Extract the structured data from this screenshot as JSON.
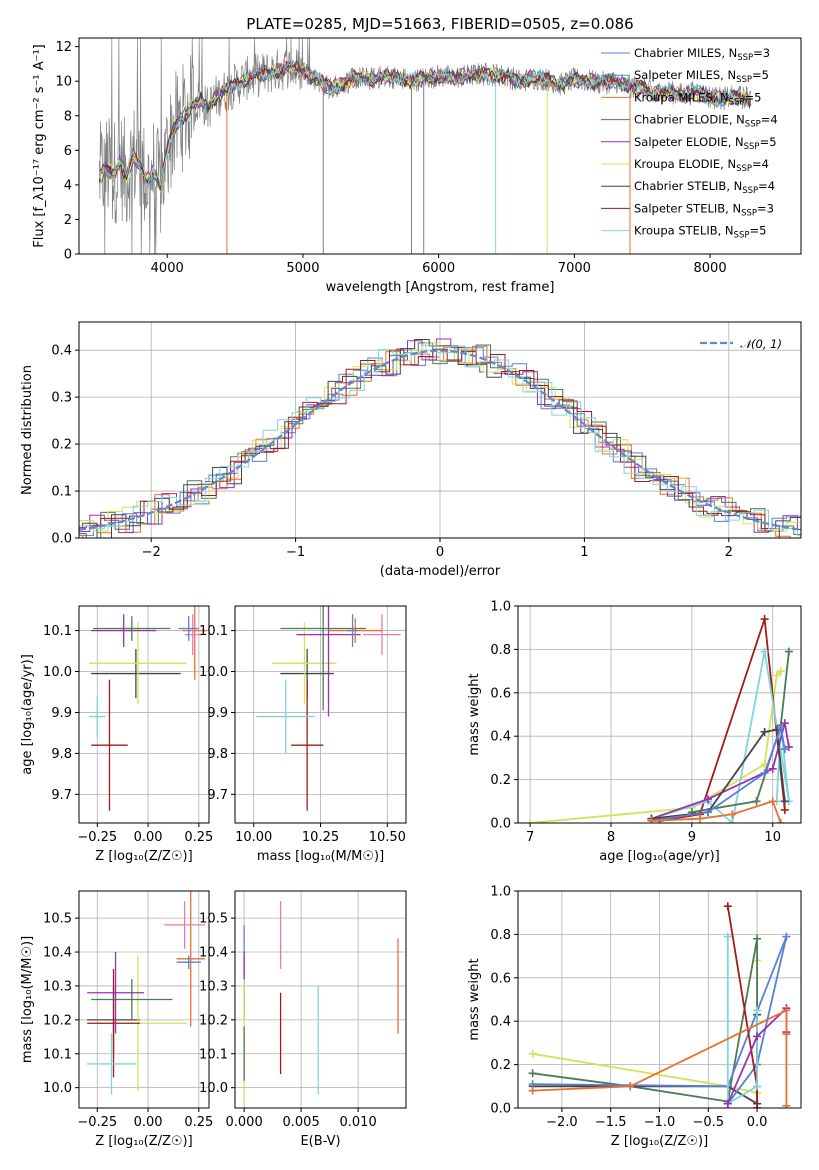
{
  "figure": {
    "title": "PLATE=0285, MJD=51663, FIBERID=0505, z=0.086"
  },
  "colors": {
    "Chabrier MILES": "#5b7fd6",
    "Salpeter MILES": "#3f9be0",
    "Kroupa MILES": "#e8712f",
    "Chabrier ELODIE": "#4d7b53",
    "Salpeter ELODIE": "#9b2fb5",
    "Kroupa ELODIE": "#d3e25a",
    "Chabrier STELIB": "#454545",
    "Salpeter STELIB": "#a21c1c",
    "Kroupa STELIB": "#7ed6dc",
    "pink": "#e57ab7",
    "data": "#808080",
    "normal": "#5a8ad2"
  },
  "chart_data": [
    {
      "id": "spectrum",
      "type": "line",
      "title": "PLATE=0285, MJD=51663, FIBERID=0505, z=0.086",
      "xlabel": "wavelength [Angstrom, rest frame]",
      "ylabel": "Flux [f_λ10⁻¹⁷ erg cm⁻² s⁻¹ A⁻¹]",
      "xlim": [
        3350,
        8670
      ],
      "ylim": [
        0,
        12.5
      ],
      "xticks": [
        4000,
        5000,
        6000,
        7000,
        8000
      ],
      "yticks": [
        0,
        2,
        4,
        6,
        8,
        10,
        12
      ],
      "grid": false,
      "legend_position": "top-right",
      "legend": [
        "Chabrier MILES, N_SSP=3",
        "Salpeter MILES, N_SSP=5",
        "Kroupa MILES, N_SSP=5",
        "Chabrier ELODIE, N_SSP=4",
        "Salpeter ELODIE, N_SSP=5",
        "Kroupa ELODIE, N_SSP=4",
        "Chabrier STELIB, N_SSP=4",
        "Salpeter STELIB, N_SSP=3",
        "Kroupa STELIB, N_SSP=5"
      ],
      "legend_main": [
        "Chabrier MILES, N",
        "Salpeter MILES, N",
        "Kroupa MILES, N",
        "Chabrier ELODIE, N",
        "Salpeter ELODIE, N",
        "Kroupa ELODIE, N",
        "Chabrier STELIB, N",
        "Salpeter STELIB, N",
        "Kroupa STELIB, N"
      ],
      "legend_sub": "SSP",
      "legend_eq": [
        "=3",
        "=5",
        "=5",
        "=4",
        "=5",
        "=4",
        "=4",
        "=3",
        "=5"
      ],
      "model_continuum": {
        "x": [
          3500,
          3550,
          3600,
          3650,
          3700,
          3750,
          3800,
          3850,
          3900,
          3950,
          4000,
          4050,
          4100,
          4150,
          4200,
          4250,
          4300,
          4350,
          4400,
          4450,
          4500,
          4600,
          4700,
          4800,
          4900,
          5000,
          5100,
          5200,
          5300,
          5400,
          5500,
          5600,
          5700,
          5800,
          5900,
          6000,
          6100,
          6200,
          6300,
          6400,
          6500,
          6600,
          6700,
          6800,
          6900,
          7000,
          7100,
          7200,
          7300,
          7400,
          7500,
          7600,
          7700,
          7800,
          7900,
          8000,
          8100,
          8200,
          8300
        ],
        "y": [
          4.4,
          5.0,
          4.6,
          5.3,
          4.5,
          5.7,
          5.1,
          4.2,
          4.8,
          3.8,
          6.0,
          7.3,
          7.8,
          8.2,
          8.7,
          8.9,
          8.4,
          9.0,
          9.3,
          9.5,
          9.8,
          10.2,
          10.4,
          10.6,
          10.8,
          10.6,
          10.1,
          9.6,
          9.9,
          10.2,
          10.1,
          10.3,
          10.2,
          10.0,
          10.2,
          10.3,
          10.2,
          10.3,
          10.4,
          10.4,
          10.3,
          10.0,
          10.2,
          10.1,
          9.8,
          10.1,
          10.0,
          9.9,
          10.0,
          9.7,
          9.6,
          9.3,
          9.4,
          9.2,
          9.4,
          9.1,
          9.0,
          9.1,
          9.0
        ]
      }
    },
    {
      "id": "residual-histogram",
      "type": "bar",
      "xlabel": "(data-model)/error",
      "ylabel": "Normed distribution",
      "xlim": [
        -2.5,
        2.5
      ],
      "ylim": [
        0,
        0.46
      ],
      "xticks": [
        -2,
        -1,
        0,
        1,
        2
      ],
      "yticks": [
        0.0,
        0.1,
        0.2,
        0.3,
        0.4
      ],
      "grid": true,
      "legend_position": "top-right",
      "legend": [
        "𝒩(0, 1)"
      ]
    },
    {
      "id": "age-vs-Z",
      "type": "scatter",
      "xlabel": "Z [log₁₀(Z/Z☉)]",
      "ylabel": "age  [log₁₀(age/yr)]",
      "xlim": [
        -0.34,
        0.3
      ],
      "ylim": [
        9.63,
        10.16
      ],
      "xticks": [
        -0.25,
        0.0,
        0.25
      ],
      "xtick_labels": [
        "−0.25",
        "0.00",
        "0.25"
      ],
      "yticks": [
        9.7,
        9.8,
        9.9,
        10.0,
        10.1
      ],
      "grid": true,
      "points": [
        {
          "model": "Chabrier STELIB",
          "x": -0.06,
          "xerr": 0.22,
          "y": 9.995,
          "yerr": 0.06
        },
        {
          "model": "Kroupa ELODIE",
          "x": -0.05,
          "xerr": 0.24,
          "y": 10.02,
          "yerr": 0.1
        },
        {
          "model": "Salpeter STELIB",
          "x": -0.19,
          "xerr": 0.09,
          "y": 9.82,
          "yerr": 0.16
        },
        {
          "model": "Kroupa STELIB",
          "x": -0.25,
          "xerr": 0.04,
          "y": 9.89,
          "yerr": 0.05
        },
        {
          "model": "Chabrier ELODIE",
          "x": -0.08,
          "xerr": 0.19,
          "y": 10.105,
          "yerr": 0.03
        },
        {
          "model": "Salpeter ELODIE",
          "x": -0.12,
          "xerr": 0.16,
          "y": 10.1,
          "yerr": 0.04
        },
        {
          "model": "Kroupa MILES",
          "x": 0.23,
          "xerr": 0.06,
          "y": 10.1,
          "yerr": 0.12
        },
        {
          "model": "pink",
          "x": 0.22,
          "xerr": 0.04,
          "y": 10.09,
          "yerr": 0.05
        },
        {
          "model": "Chabrier MILES",
          "x": 0.2,
          "xerr": 0.05,
          "y": 10.105,
          "yerr": 0.03
        }
      ]
    },
    {
      "id": "age-vs-mass",
      "type": "scatter",
      "xlabel": "mass [log₁₀(M/M☉)]",
      "xlim": [
        9.93,
        10.57
      ],
      "ylim": [
        9.63,
        10.16
      ],
      "xticks": [
        10.0,
        10.25,
        10.5
      ],
      "xtick_labels": [
        "10.00",
        "10.25",
        "10.50"
      ],
      "yticks": [
        9.7,
        9.8,
        9.9,
        10.0,
        10.1
      ],
      "grid": true,
      "points": [
        {
          "model": "Chabrier STELIB",
          "x": 10.2,
          "xerr": 0.1,
          "y": 9.995,
          "yerr": 0.06
        },
        {
          "model": "Kroupa ELODIE",
          "x": 10.19,
          "xerr": 0.12,
          "y": 10.02,
          "yerr": 0.1
        },
        {
          "model": "Salpeter STELIB",
          "x": 10.2,
          "xerr": 0.06,
          "y": 9.82,
          "yerr": 0.16
        },
        {
          "model": "Kroupa STELIB",
          "x": 10.12,
          "xerr": 0.11,
          "y": 9.89,
          "yerr": 0.09
        },
        {
          "model": "Chabrier ELODIE",
          "x": 10.26,
          "xerr": 0.16,
          "y": 10.105,
          "yerr": 0.2
        },
        {
          "model": "Salpeter ELODIE",
          "x": 10.28,
          "xerr": 0.12,
          "y": 10.09,
          "yerr": 0.2
        },
        {
          "model": "pink",
          "x": 10.48,
          "xerr": 0.07,
          "y": 10.09,
          "yerr": 0.05
        },
        {
          "model": "Kroupa MILES",
          "x": 10.38,
          "xerr": 0.1,
          "y": 10.1,
          "yerr": 0.03
        },
        {
          "model": "Chabrier MILES",
          "x": 10.37,
          "xerr": 0.02,
          "y": 10.1,
          "yerr": 0.04
        }
      ]
    },
    {
      "id": "mass-weight-vs-age",
      "type": "line",
      "xlabel": "age  [log₁₀(age/yr)]",
      "ylabel": "mass weight",
      "xlim": [
        6.85,
        10.35
      ],
      "ylim": [
        0,
        1.0
      ],
      "xticks": [
        7,
        8,
        9,
        10
      ],
      "yticks": [
        0.0,
        0.2,
        0.4,
        0.6,
        0.8,
        1.0
      ],
      "grid": true,
      "series": [
        {
          "model": "Kroupa ELODIE",
          "x": [
            7.0,
            9.0,
            9.9,
            10.05,
            10.1
          ],
          "y": [
            0.0,
            0.07,
            0.27,
            0.68,
            0.7
          ]
        },
        {
          "model": "Salpeter STELIB",
          "x": [
            8.6,
            9.1,
            9.9,
            10.15
          ],
          "y": [
            0.01,
            0.04,
            0.94,
            0.06
          ]
        },
        {
          "model": "Kroupa STELIB",
          "x": [
            8.5,
            9.2,
            9.5,
            9.9,
            10.2,
            10.1,
            10.05
          ],
          "y": [
            0.02,
            0.1,
            0.0,
            0.79,
            0.1,
            0.45,
            0.1
          ]
        },
        {
          "model": "Chabrier ELODIE",
          "x": [
            9.0,
            9.8,
            10.1,
            10.2
          ],
          "y": [
            0.05,
            0.1,
            0.45,
            0.79
          ]
        },
        {
          "model": "Salpeter ELODIE",
          "x": [
            8.5,
            9.2,
            10.0,
            10.15,
            10.2
          ],
          "y": [
            0.02,
            0.11,
            0.25,
            0.46,
            0.35
          ]
        },
        {
          "model": "Chabrier STELIB",
          "x": [
            8.5,
            9.2,
            9.9,
            10.05,
            10.15
          ],
          "y": [
            0.02,
            0.05,
            0.42,
            0.43,
            0.1
          ]
        },
        {
          "model": "Chabrier MILES",
          "x": [
            8.5,
            9.2,
            9.9,
            10.1,
            10.15
          ],
          "y": [
            0.01,
            0.05,
            0.23,
            0.44,
            0.34
          ]
        },
        {
          "model": "Kroupa MILES",
          "x": [
            8.5,
            9.1,
            9.5,
            10.0,
            10.1
          ],
          "y": [
            0.01,
            0.02,
            0.04,
            0.1,
            0.0
          ]
        }
      ]
    },
    {
      "id": "mass-vs-Z",
      "type": "scatter",
      "xlabel": "Z [log₁₀(Z/Z☉)]",
      "ylabel": "mass [log₁₀(M/M☉)]",
      "xlim": [
        -0.34,
        0.3
      ],
      "ylim": [
        9.94,
        10.58
      ],
      "xticks": [
        -0.25,
        0.0,
        0.25
      ],
      "xtick_labels": [
        "−0.25",
        "0.00",
        "0.25"
      ],
      "yticks": [
        10.0,
        10.1,
        10.2,
        10.3,
        10.4,
        10.5
      ],
      "grid": true,
      "points": [
        {
          "model": "Chabrier STELIB",
          "x": -0.17,
          "xerr": 0.13,
          "y": 10.2,
          "yerr": 0.1
        },
        {
          "model": "Kroupa ELODIE",
          "x": -0.05,
          "xerr": 0.24,
          "y": 10.19,
          "yerr": 0.2
        },
        {
          "model": "Salpeter STELIB",
          "x": -0.17,
          "xerr": 0.13,
          "y": 10.19,
          "yerr": 0.16
        },
        {
          "model": "Kroupa STELIB",
          "x": -0.18,
          "xerr": 0.12,
          "y": 10.07,
          "yerr": 0.09
        },
        {
          "model": "Chabrier ELODIE",
          "x": -0.08,
          "xerr": 0.2,
          "y": 10.26,
          "yerr": 0.06
        },
        {
          "model": "Salpeter ELODIE",
          "x": -0.16,
          "xerr": 0.14,
          "y": 10.28,
          "yerr": 0.12
        },
        {
          "model": "Kroupa MILES",
          "x": 0.21,
          "xerr": 0.07,
          "y": 10.38,
          "yerr": 0.2
        },
        {
          "model": "pink",
          "x": 0.18,
          "xerr": 0.1,
          "y": 10.48,
          "yerr": 0.07
        },
        {
          "model": "Chabrier MILES",
          "x": 0.2,
          "xerr": 0.06,
          "y": 10.37,
          "yerr": 0.02
        }
      ]
    },
    {
      "id": "mass-vs-EBV",
      "type": "scatter",
      "xlabel": "E(B-V)",
      "xlim": [
        -0.0008,
        0.0142
      ],
      "ylim": [
        9.94,
        10.58
      ],
      "xticks": [
        0.0,
        0.005,
        0.01
      ],
      "xtick_labels": [
        "0.000",
        "0.005",
        "0.010"
      ],
      "yticks": [
        10.0,
        10.1,
        10.2,
        10.3,
        10.4,
        10.5
      ],
      "grid": true,
      "points": [
        {
          "model": "Chabrier MILES",
          "x": 0.0,
          "y": 10.4,
          "yerr": 0.08
        },
        {
          "model": "Salpeter ELODIE",
          "x": 0.0,
          "y": 10.3,
          "yerr": 0.1
        },
        {
          "model": "Kroupa ELODIE",
          "x": 0.0,
          "y": 10.14,
          "yerr": 0.18
        },
        {
          "model": "Chabrier ELODIE",
          "x": 0.0,
          "y": 10.1,
          "yerr": 0.08
        },
        {
          "model": "pink",
          "x": 0.0032,
          "y": 10.45,
          "yerr": 0.1
        },
        {
          "model": "Salpeter STELIB",
          "x": 0.0032,
          "y": 10.16,
          "yerr": 0.12
        },
        {
          "model": "Kroupa STELIB",
          "x": 0.0065,
          "y": 10.14,
          "yerr": 0.16
        },
        {
          "model": "Kroupa MILES",
          "x": 0.0135,
          "y": 10.3,
          "yerr": 0.14
        }
      ]
    },
    {
      "id": "mass-weight-vs-Z",
      "type": "line",
      "xlabel": "Z [log₁₀(Z/Z☉)]",
      "ylabel": "mass weight",
      "xlim": [
        -2.45,
        0.45
      ],
      "ylim": [
        0,
        1.0
      ],
      "xticks": [
        -2.0,
        -1.5,
        -1.0,
        -0.5,
        0.0
      ],
      "xtick_labels": [
        "−2.0",
        "−1.5",
        "−1.0",
        "−0.5",
        "0.0"
      ],
      "yticks": [
        0.0,
        0.2,
        0.4,
        0.6,
        0.8,
        1.0
      ],
      "grid": true,
      "series": [
        {
          "model": "Kroupa ELODIE",
          "x": [
            -2.3,
            -0.3,
            0.0,
            0.0,
            0.0
          ],
          "y": [
            0.25,
            0.1,
            0.07,
            0.68,
            0.1
          ]
        },
        {
          "model": "Chabrier ELODIE",
          "x": [
            -2.3,
            -1.3,
            -0.3,
            0.0,
            0.0
          ],
          "y": [
            0.16,
            0.1,
            0.03,
            0.78,
            0.0
          ]
        },
        {
          "model": "Chabrier STELIB",
          "x": [
            -2.3,
            -0.3,
            0.0,
            0.0
          ],
          "y": [
            0.1,
            0.1,
            0.02,
            0.43
          ]
        },
        {
          "model": "Chabrier MILES",
          "x": [
            -2.3,
            -0.3,
            0.3,
            0.0,
            -0.3
          ],
          "y": [
            0.11,
            0.1,
            0.79,
            0.2,
            0.02
          ]
        },
        {
          "model": "Salpeter STELIB",
          "x": [
            -0.3,
            0.0,
            0.0
          ],
          "y": [
            0.93,
            0.1,
            0.0
          ]
        },
        {
          "model": "Kroupa STELIB",
          "x": [
            -0.3,
            -0.3,
            0.0,
            0.0
          ],
          "y": [
            0.79,
            0.02,
            0.1,
            0.45
          ]
        },
        {
          "model": "Salpeter ELODIE",
          "x": [
            -0.3,
            0.0,
            0.3,
            0.3
          ],
          "y": [
            0.02,
            0.33,
            0.46,
            0.35
          ]
        },
        {
          "model": "Kroupa MILES",
          "x": [
            -2.3,
            -1.3,
            0.3,
            0.3,
            0.3
          ],
          "y": [
            0.08,
            0.1,
            0.45,
            0.34,
            0.01
          ]
        }
      ]
    }
  ]
}
